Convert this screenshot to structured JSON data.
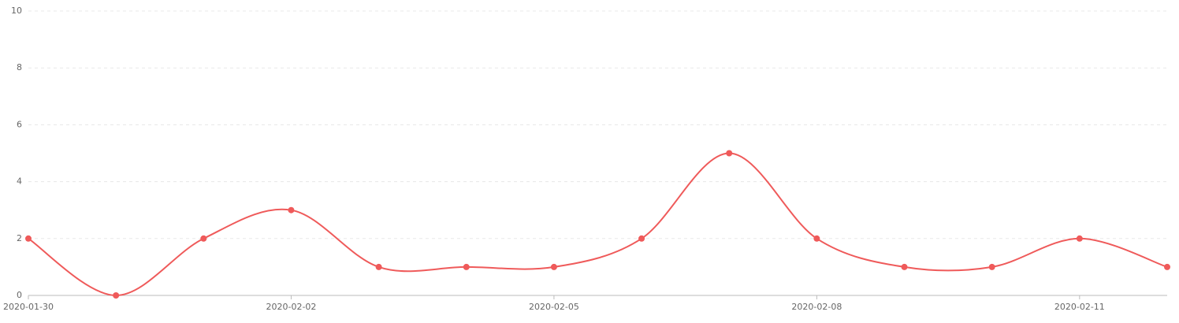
{
  "chart_data": {
    "type": "line",
    "categories": [
      "2020-01-30",
      null,
      null,
      "2020-02-02",
      null,
      null,
      "2020-02-05",
      null,
      null,
      "2020-02-08",
      null,
      null,
      "2020-02-11",
      null
    ],
    "values": [
      2,
      0,
      2,
      3,
      1,
      1,
      1,
      2,
      5,
      2,
      1,
      1,
      2,
      1
    ],
    "color": "#ef5a5a",
    "ylim": [
      0,
      10
    ],
    "yticks": [
      0,
      2,
      4,
      6,
      8,
      10
    ],
    "grid": true,
    "smooth": true
  }
}
